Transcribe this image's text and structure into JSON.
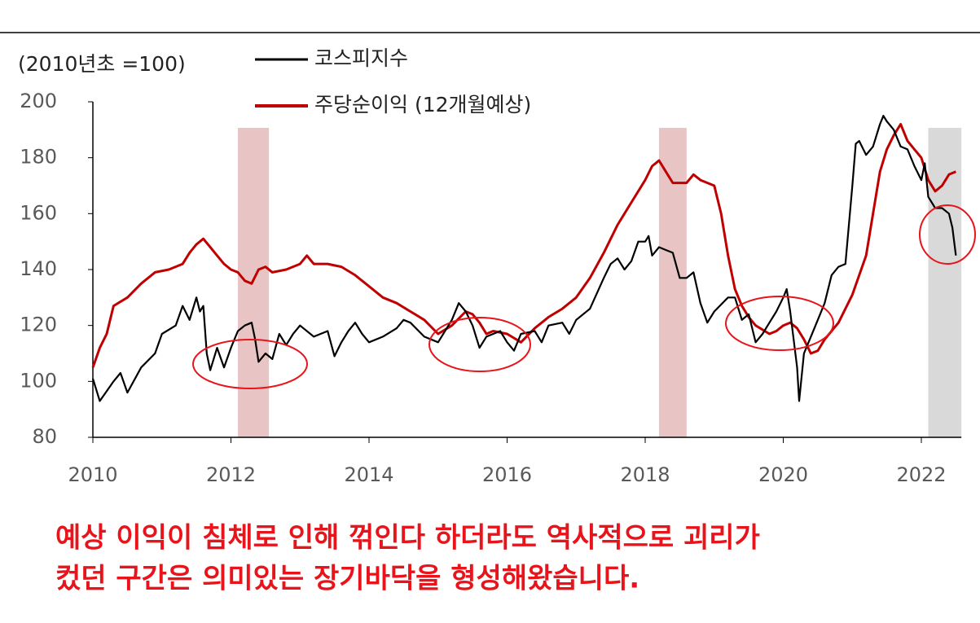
{
  "chart_data": {
    "type": "line",
    "y_axis_label": "(2010년초 =100)",
    "annotation": [
      "예상 이익이 침체로 인해 꺾인다 하더라도 역사적으로 괴리가",
      "컸던 구간은 의미있는 장기바닥을 형성해왔습니다."
    ],
    "xlim": [
      2010,
      2022.58
    ],
    "xticks": [
      2010,
      2012,
      2014,
      2016,
      2018,
      2020,
      2022
    ],
    "ylim": [
      80,
      200
    ],
    "yticks": [
      80,
      100,
      120,
      140,
      160,
      180,
      200
    ],
    "highlight_bands": [
      {
        "start": 2012.1,
        "end": 2012.55,
        "color": "#e8c4c4"
      },
      {
        "start": 2018.2,
        "end": 2018.6,
        "color": "#e8c4c4"
      },
      {
        "start": 2022.1,
        "end": 2022.58,
        "color": "#d9d9d9"
      }
    ],
    "series": [
      {
        "name": "코스피지수",
        "color": "#000000",
        "x": [
          2010.0,
          2010.1,
          2010.3,
          2010.4,
          2010.5,
          2010.7,
          2010.9,
          2011.0,
          2011.2,
          2011.3,
          2011.4,
          2011.5,
          2011.55,
          2011.6,
          2011.65,
          2011.7,
          2011.8,
          2011.9,
          2012.0,
          2012.1,
          2012.2,
          2012.3,
          2012.35,
          2012.4,
          2012.5,
          2012.6,
          2012.7,
          2012.8,
          2012.9,
          2013.0,
          2013.2,
          2013.4,
          2013.5,
          2013.6,
          2013.7,
          2013.8,
          2013.9,
          2014.0,
          2014.2,
          2014.4,
          2014.5,
          2014.6,
          2014.8,
          2014.9,
          2015.0,
          2015.2,
          2015.3,
          2015.4,
          2015.5,
          2015.6,
          2015.7,
          2015.8,
          2015.9,
          2016.0,
          2016.1,
          2016.2,
          2016.4,
          2016.5,
          2016.6,
          2016.8,
          2016.9,
          2017.0,
          2017.2,
          2017.4,
          2017.5,
          2017.6,
          2017.7,
          2017.8,
          2017.9,
          2018.0,
          2018.05,
          2018.1,
          2018.2,
          2018.3,
          2018.4,
          2018.5,
          2018.6,
          2018.7,
          2018.8,
          2018.9,
          2019.0,
          2019.2,
          2019.3,
          2019.4,
          2019.5,
          2019.6,
          2019.7,
          2019.8,
          2019.9,
          2020.0,
          2020.05,
          2020.1,
          2020.2,
          2020.23,
          2020.3,
          2020.4,
          2020.5,
          2020.6,
          2020.7,
          2020.8,
          2020.9,
          2021.0,
          2021.05,
          2021.1,
          2021.2,
          2021.3,
          2021.4,
          2021.45,
          2021.5,
          2021.6,
          2021.7,
          2021.8,
          2021.9,
          2022.0,
          2022.05,
          2022.1,
          2022.2,
          2022.3,
          2022.4,
          2022.45,
          2022.5
        ],
        "values": [
          101,
          93,
          100,
          103,
          96,
          105,
          110,
          117,
          120,
          127,
          122,
          130,
          125,
          127,
          110,
          104,
          112,
          105,
          112,
          118,
          120,
          121,
          115,
          107,
          110,
          108,
          117,
          113,
          117,
          120,
          116,
          118,
          109,
          114,
          118,
          121,
          117,
          114,
          116,
          119,
          122,
          121,
          116,
          115,
          114,
          122,
          128,
          125,
          120,
          112,
          116,
          117,
          118,
          114,
          111,
          117,
          118,
          114,
          120,
          121,
          117,
          122,
          126,
          137,
          142,
          144,
          140,
          143,
          150,
          150,
          152,
          145,
          148,
          147,
          146,
          137,
          137,
          139,
          128,
          121,
          125,
          130,
          130,
          122,
          124,
          114,
          117,
          121,
          125,
          130,
          133,
          125,
          105,
          93,
          110,
          116,
          122,
          128,
          138,
          141,
          142,
          170,
          185,
          186,
          181,
          184,
          192,
          195,
          193,
          190,
          184,
          183,
          177,
          172,
          178,
          166,
          162,
          162,
          160,
          155,
          145
        ]
      },
      {
        "name": "주당순이익 (12개월예상)",
        "color": "#c00000",
        "x": [
          2010.0,
          2010.1,
          2010.2,
          2010.3,
          2010.5,
          2010.7,
          2010.9,
          2011.1,
          2011.3,
          2011.4,
          2011.5,
          2011.6,
          2011.7,
          2011.8,
          2011.9,
          2012.0,
          2012.1,
          2012.2,
          2012.3,
          2012.4,
          2012.5,
          2012.6,
          2012.8,
          2013.0,
          2013.1,
          2013.2,
          2013.4,
          2013.6,
          2013.8,
          2014.0,
          2014.2,
          2014.4,
          2014.6,
          2014.8,
          2015.0,
          2015.2,
          2015.4,
          2015.5,
          2015.6,
          2015.7,
          2015.8,
          2016.0,
          2016.2,
          2016.4,
          2016.6,
          2016.8,
          2017.0,
          2017.2,
          2017.4,
          2017.6,
          2017.8,
          2018.0,
          2018.1,
          2018.2,
          2018.3,
          2018.4,
          2018.6,
          2018.7,
          2018.8,
          2019.0,
          2019.1,
          2019.2,
          2019.3,
          2019.4,
          2019.5,
          2019.6,
          2019.8,
          2019.9,
          2020.0,
          2020.1,
          2020.2,
          2020.3,
          2020.4,
          2020.5,
          2020.6,
          2020.8,
          2021.0,
          2021.2,
          2021.3,
          2021.4,
          2021.5,
          2021.6,
          2021.7,
          2021.8,
          2021.9,
          2022.0,
          2022.1,
          2022.2,
          2022.3,
          2022.4,
          2022.5
        ],
        "values": [
          105,
          112,
          117,
          127,
          130,
          135,
          139,
          140,
          142,
          146,
          149,
          151,
          148,
          145,
          142,
          140,
          139,
          136,
          135,
          140,
          141,
          139,
          140,
          142,
          145,
          142,
          142,
          141,
          138,
          134,
          130,
          128,
          125,
          122,
          117,
          120,
          125,
          124,
          121,
          117,
          118,
          117,
          114,
          119,
          123,
          126,
          130,
          137,
          146,
          156,
          164,
          172,
          177,
          179,
          175,
          171,
          171,
          174,
          172,
          170,
          160,
          145,
          133,
          127,
          123,
          120,
          117,
          118,
          120,
          121,
          119,
          115,
          110,
          111,
          115,
          121,
          131,
          145,
          160,
          175,
          183,
          188,
          192,
          186,
          183,
          180,
          172,
          168,
          170,
          174,
          175
        ]
      }
    ]
  }
}
